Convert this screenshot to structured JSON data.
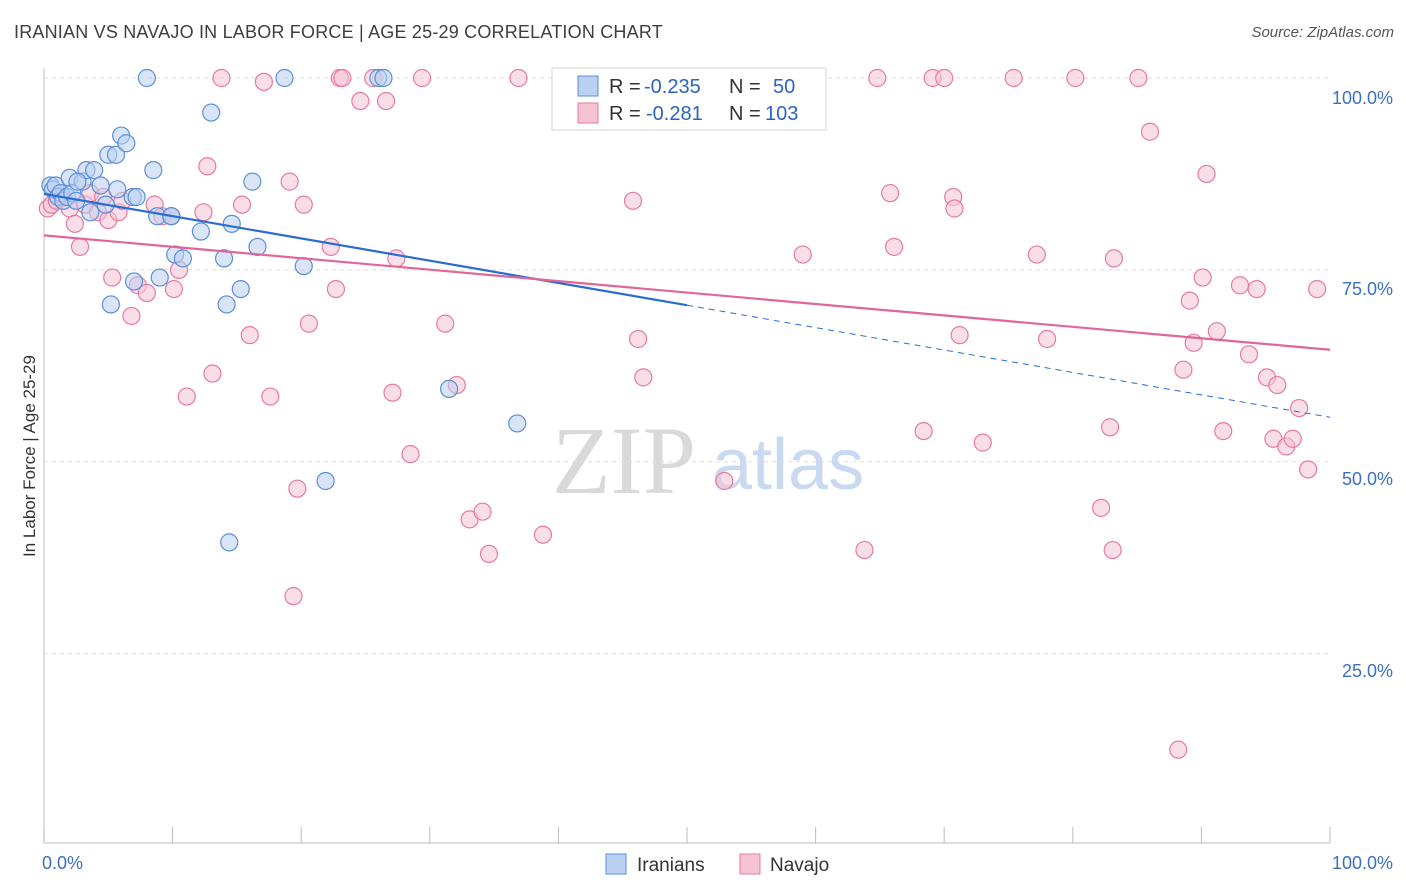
{
  "header": {
    "title": "IRANIAN VS NAVAJO IN LABOR FORCE | AGE 25-29 CORRELATION CHART",
    "source": "Source: ZipAtlas.com"
  },
  "watermark": {
    "zip": "ZIP",
    "atlas": "atlas"
  },
  "colors": {
    "iranians": "#5b8fd9",
    "iranians_fill": "#b9d0f1",
    "navajo": "#e87aa0",
    "navajo_fill": "#f6c3d4",
    "blue_line": "#2a6dd1",
    "pink_line": "#e0669a",
    "grid": "#dddddd",
    "tick_text": "#3b6fc2"
  },
  "legend": {
    "rows": [
      {
        "r_label": "R = ",
        "r_value": "-0.235",
        "n_label": "N = ",
        "n_value": "50"
      },
      {
        "r_label": "R = ",
        "r_value": "-0.281",
        "n_label": "N = ",
        "n_value": "103"
      }
    ]
  },
  "bottom_legend": {
    "items": [
      "Iranians",
      "Navajo"
    ]
  },
  "chart_data": {
    "type": "scatter",
    "title": "IRANIAN VS NAVAJO IN LABOR FORCE | AGE 25-29 CORRELATION CHART",
    "xlabel": "",
    "ylabel": "In Labor Force | Age 25-29",
    "xlim": [
      0,
      100
    ],
    "ylim": [
      0,
      102
    ],
    "x_tick_labels": [
      "0.0%",
      "100.0%"
    ],
    "y_ticks": [
      25,
      50,
      75,
      100
    ],
    "y_tick_labels": [
      "25.0%",
      "50.0%",
      "75.0%",
      "100.0%"
    ],
    "series": [
      {
        "name": "Iranians",
        "R": -0.235,
        "N": 50,
        "trend": {
          "x0": 0,
          "y0": 84.9,
          "x1": 50,
          "y1": 70.4,
          "dash_to_x": 100,
          "dash_to_y": 55.8
        },
        "points": [
          [
            0.5,
            86
          ],
          [
            0.7,
            85.5
          ],
          [
            0.9,
            86
          ],
          [
            1.1,
            84.5
          ],
          [
            1.3,
            85
          ],
          [
            1.5,
            84
          ],
          [
            1.8,
            84.5
          ],
          [
            2.0,
            87
          ],
          [
            2.2,
            85
          ],
          [
            2.5,
            84
          ],
          [
            3.0,
            86.5
          ],
          [
            3.3,
            88
          ],
          [
            3.6,
            82.5
          ],
          [
            3.9,
            88
          ],
          [
            4.4,
            86
          ],
          [
            4.8,
            83.5
          ],
          [
            5.0,
            90
          ],
          [
            5.6,
            90
          ],
          [
            5.7,
            85.5
          ],
          [
            6.0,
            92.5
          ],
          [
            6.4,
            91.5
          ],
          [
            6.9,
            84.5
          ],
          [
            7.0,
            73.5
          ],
          [
            7.2,
            84.5
          ],
          [
            8.0,
            100
          ],
          [
            8.5,
            88
          ],
          [
            8.8,
            82
          ],
          [
            9.0,
            74
          ],
          [
            9.9,
            82
          ],
          [
            10.2,
            77
          ],
          [
            10.8,
            76.5
          ],
          [
            12.2,
            80
          ],
          [
            13.0,
            95.5
          ],
          [
            14.0,
            76.5
          ],
          [
            14.2,
            70.5
          ],
          [
            14.4,
            39.5
          ],
          [
            14.6,
            81
          ],
          [
            15.3,
            72.5
          ],
          [
            16.2,
            86.5
          ],
          [
            16.6,
            78
          ],
          [
            18.7,
            100
          ],
          [
            20.2,
            75.5
          ],
          [
            21.9,
            47.5
          ],
          [
            26.0,
            100
          ],
          [
            26.4,
            100
          ],
          [
            31.5,
            59.5
          ],
          [
            36.8,
            55
          ],
          [
            5.2,
            70.5
          ],
          [
            2.6,
            86.5
          ],
          [
            9.9,
            82
          ]
        ]
      },
      {
        "name": "Navajo",
        "R": -0.281,
        "N": 103,
        "trend": {
          "x0": 0,
          "y0": 79.5,
          "x1": 100,
          "y1": 64.6
        },
        "points": [
          [
            0.3,
            83
          ],
          [
            0.6,
            83.5
          ],
          [
            1.0,
            84
          ],
          [
            1.5,
            84.5
          ],
          [
            2.0,
            83
          ],
          [
            2.4,
            81
          ],
          [
            2.8,
            78
          ],
          [
            3.2,
            83.5
          ],
          [
            3.6,
            85
          ],
          [
            4.2,
            82.5
          ],
          [
            4.6,
            84.5
          ],
          [
            5.0,
            81.5
          ],
          [
            5.3,
            74
          ],
          [
            5.8,
            82.5
          ],
          [
            6.1,
            84
          ],
          [
            6.8,
            69
          ],
          [
            7.3,
            73
          ],
          [
            8.0,
            72
          ],
          [
            8.6,
            83.5
          ],
          [
            9.2,
            82
          ],
          [
            9.9,
            82
          ],
          [
            10.1,
            72.5
          ],
          [
            10.5,
            75
          ],
          [
            11.1,
            58.5
          ],
          [
            12.4,
            82.5
          ],
          [
            12.7,
            88.5
          ],
          [
            13.1,
            61.5
          ],
          [
            13.8,
            100
          ],
          [
            15.4,
            83.5
          ],
          [
            16.0,
            66.5
          ],
          [
            17.1,
            99.5
          ],
          [
            17.6,
            58.5
          ],
          [
            19.1,
            86.5
          ],
          [
            19.4,
            32.5
          ],
          [
            19.7,
            46.5
          ],
          [
            20.2,
            83.5
          ],
          [
            20.6,
            68
          ],
          [
            22.3,
            78
          ],
          [
            22.7,
            72.5
          ],
          [
            23.0,
            100
          ],
          [
            23.2,
            100
          ],
          [
            24.6,
            97
          ],
          [
            25.6,
            100
          ],
          [
            26.6,
            97
          ],
          [
            27.1,
            59
          ],
          [
            27.4,
            76.5
          ],
          [
            28.5,
            51
          ],
          [
            29.4,
            100
          ],
          [
            31.2,
            68
          ],
          [
            32.1,
            60
          ],
          [
            33.1,
            42.5
          ],
          [
            34.1,
            43.5
          ],
          [
            34.6,
            38
          ],
          [
            36.9,
            100
          ],
          [
            38.8,
            40.5
          ],
          [
            40.2,
            100
          ],
          [
            43.3,
            100
          ],
          [
            45.8,
            84
          ],
          [
            46.2,
            66
          ],
          [
            46.6,
            61
          ],
          [
            52.9,
            47.5
          ],
          [
            55.4,
            100
          ],
          [
            59.0,
            77
          ],
          [
            63.8,
            38.5
          ],
          [
            64.8,
            100
          ],
          [
            65.8,
            85
          ],
          [
            66.1,
            78
          ],
          [
            68.4,
            54
          ],
          [
            69.1,
            100
          ],
          [
            70.0,
            100
          ],
          [
            70.7,
            84.5
          ],
          [
            70.8,
            83
          ],
          [
            71.2,
            66.5
          ],
          [
            73.0,
            52.5
          ],
          [
            75.4,
            100
          ],
          [
            77.2,
            77
          ],
          [
            78.0,
            66
          ],
          [
            80.2,
            100
          ],
          [
            82.2,
            44
          ],
          [
            82.9,
            54.5
          ],
          [
            83.1,
            38.5
          ],
          [
            83.2,
            76.5
          ],
          [
            85.1,
            100
          ],
          [
            86.0,
            93
          ],
          [
            88.2,
            12.5
          ],
          [
            88.6,
            62
          ],
          [
            89.1,
            71
          ],
          [
            89.4,
            65.5
          ],
          [
            90.1,
            74
          ],
          [
            90.4,
            87.5
          ],
          [
            91.2,
            67
          ],
          [
            91.7,
            54
          ],
          [
            93.0,
            73
          ],
          [
            93.7,
            64
          ],
          [
            94.3,
            72.5
          ],
          [
            95.1,
            61
          ],
          [
            95.6,
            53
          ],
          [
            95.9,
            60
          ],
          [
            96.6,
            52
          ],
          [
            97.1,
            53
          ],
          [
            97.6,
            57
          ],
          [
            98.3,
            49
          ],
          [
            99.0,
            72.5
          ]
        ]
      }
    ]
  }
}
